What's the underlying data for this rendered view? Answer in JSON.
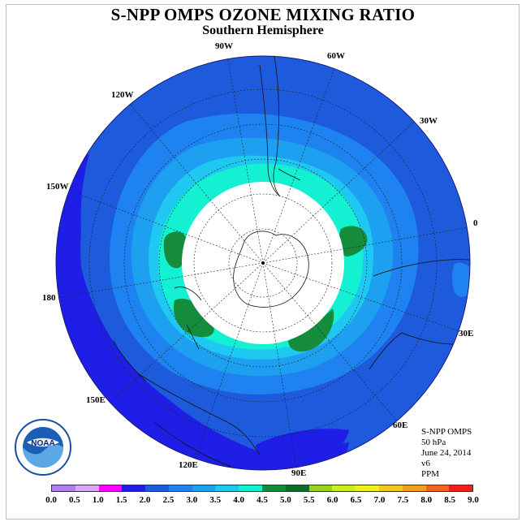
{
  "title": "S-NPP OMPS OZONE MIXING RATIO",
  "subtitle": "Southern Hemisphere",
  "longitude_labels": [
    "90W",
    "60W",
    "30W",
    "0",
    "30E",
    "60E",
    "90E",
    "120E",
    "150E",
    "180",
    "150W",
    "120W"
  ],
  "info": {
    "instrument": "S-NPP OMPS",
    "level": "50 hPa",
    "date": "June 24, 2014",
    "version": "v6",
    "units": "PPM"
  },
  "logo": {
    "name": "NOAA",
    "text": "NATIONAL OCEANIC AND ATMOSPHERIC ADMINISTRATION · U.S. DEPARTMENT OF COMMERCE"
  },
  "colorbar": {
    "ticks": [
      "0.0",
      "0.5",
      "1.0",
      "1.5",
      "2.0",
      "2.5",
      "3.0",
      "3.5",
      "4.0",
      "4.5",
      "5.0",
      "5.5",
      "6.0",
      "6.5",
      "7.0",
      "7.5",
      "8.0",
      "8.5",
      "9.0"
    ],
    "colors": [
      "#b07ef0",
      "#d9a8f0",
      "#ff00ff",
      "#1e1ee6",
      "#1e5adc",
      "#1e82f0",
      "#1ea0f0",
      "#1ec8f0",
      "#14f0d2",
      "#148c3c",
      "#0a6e28",
      "#96d21e",
      "#c8f01e",
      "#f0f01e",
      "#f0c81e",
      "#f0a01e",
      "#f0641e",
      "#f01e1e",
      "#8c5a3c"
    ]
  }
}
